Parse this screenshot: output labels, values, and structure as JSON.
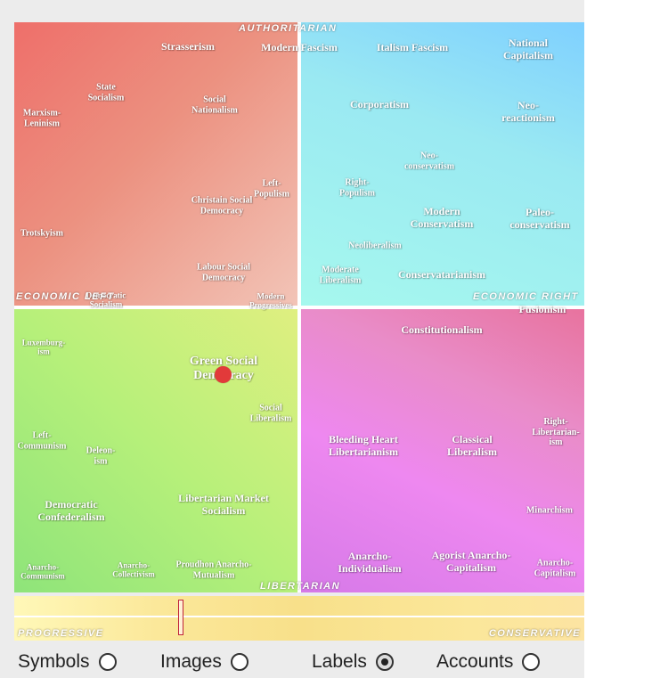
{
  "axes": {
    "top": "Authoritarian",
    "bottom": "Libertarian",
    "left": "Economic Left",
    "right": "Economic Right"
  },
  "quadrant_labels": {
    "auth_left": [
      {
        "text": "Strasserism"
      },
      {
        "text": "State\nSocialism"
      },
      {
        "text": "Social\nNationalism"
      },
      {
        "text": "Marxism-\nLeninism"
      },
      {
        "text": "Left-\nPopulism"
      },
      {
        "text": "Christain Social\nDemocracy"
      },
      {
        "text": "Trotskyism"
      },
      {
        "text": "Labour Social\nDemocracy"
      },
      {
        "text": "Democratic\nSocialism"
      },
      {
        "text": "Modern\nProgressives"
      }
    ],
    "auth_right": [
      {
        "text": "Modern Fascism"
      },
      {
        "text": "Italism Fascism"
      },
      {
        "text": "National\nCapitalism"
      },
      {
        "text": "Corporatism"
      },
      {
        "text": "Neo-\nreactionism"
      },
      {
        "text": "Neo-\nconservatism"
      },
      {
        "text": "Right-\nPopulism"
      },
      {
        "text": "Modern\nConservatism"
      },
      {
        "text": "Paleo-\nconservatism"
      },
      {
        "text": "Neoliberalism"
      },
      {
        "text": "Moderate\nLiberalism"
      },
      {
        "text": "Conservatarianism"
      }
    ],
    "lib_left": [
      {
        "text": "Luxemburg-\nism"
      },
      {
        "text": "Green Social\nDemocracy"
      },
      {
        "text": "Social\nLiberalism"
      },
      {
        "text": "Left-\nCommunism"
      },
      {
        "text": "Deleon-\nism"
      },
      {
        "text": "Democratic\nConfederalism"
      },
      {
        "text": "Libertarian Market\nSocialism"
      },
      {
        "text": "Anarcho-\nCommunism"
      },
      {
        "text": "Anarcho-\nCollectivism"
      },
      {
        "text": "Proudhon Anarcho-\nMutualism"
      }
    ],
    "lib_right": [
      {
        "text": "Fusionism"
      },
      {
        "text": "Constitutionalism"
      },
      {
        "text": "Right-\nLibertarian-\nism"
      },
      {
        "text": "Bleeding Heart\nLibertarianism"
      },
      {
        "text": "Classical\nLiberalism"
      },
      {
        "text": "Minarchism"
      },
      {
        "text": "Anarcho-\nIndividualism"
      },
      {
        "text": "Agorist Anarcho-\nCapitalism"
      },
      {
        "text": "Anarcho-\nCapitalism"
      }
    ]
  },
  "social_scale": {
    "left_label": "Progressive",
    "right_label": "Conservative",
    "position": 0.29
  },
  "options": [
    {
      "label": "Symbols",
      "selected": false
    },
    {
      "label": "Images",
      "selected": false
    },
    {
      "label": "Labels",
      "selected": true
    },
    {
      "label": "Accounts",
      "selected": false
    }
  ],
  "colors": {
    "marker": "#e23a3a",
    "auth_left": "#ee6f6a",
    "auth_right": "#9ae9f2",
    "lib_left": "#b6f07a",
    "lib_right": "#ee88f0"
  }
}
